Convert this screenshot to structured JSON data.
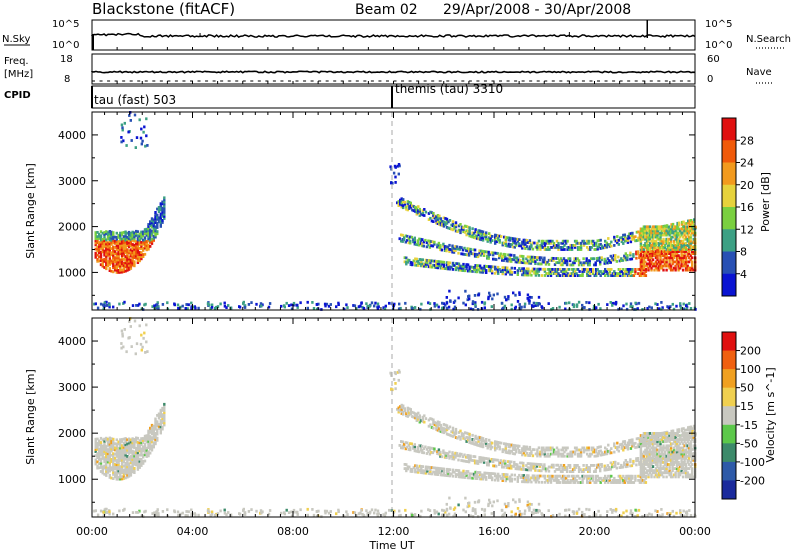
{
  "header": {
    "title": "Blackstone (fitACF)",
    "beam": "Beam 02",
    "date_range": "29/Apr/2008 - 30/Apr/2008"
  },
  "noise_panel": {
    "left_label": "N.Sky",
    "left_ticks": [
      "10^5",
      "10^0"
    ],
    "right_label": "N.Search",
    "right_ticks": [
      "10^5",
      "10^0"
    ]
  },
  "freq_panel": {
    "left_label_line1": "Freq.",
    "left_label_line2": "[MHz]",
    "left_ticks": [
      "18",
      "8"
    ],
    "right_label": "Nave",
    "right_ticks": [
      "60",
      "0"
    ]
  },
  "cpid_panel": {
    "label": "CPID",
    "modes": [
      {
        "name": "tau (fast) 503",
        "start": "00:00"
      },
      {
        "name": "themis (tau) 3310",
        "start": "12:00"
      }
    ]
  },
  "chart_data": [
    {
      "type": "heatmap",
      "name": "power",
      "ylabel": "Slant Range [km]",
      "xlabel": "Time UT",
      "xlim": [
        "00:00",
        "24:00"
      ],
      "ylim": [
        180,
        4500
      ],
      "yticks": [
        1000,
        2000,
        3000,
        4000
      ],
      "xticks": [
        "00:00",
        "04:00",
        "08:00",
        "12:00",
        "16:00",
        "20:00",
        "00:00"
      ],
      "colorbar": {
        "label": "Power [dB]",
        "ticks": [
          "4",
          "8",
          "12",
          "16",
          "20",
          "24",
          "28"
        ],
        "colors": [
          "#0a14d2",
          "#2850b4",
          "#3ca084",
          "#7ad040",
          "#e6d23c",
          "#f29a1e",
          "#f05a0a",
          "#e01010"
        ]
      }
    },
    {
      "type": "heatmap",
      "name": "velocity",
      "ylabel": "Slant Range [km]",
      "xlabel": "Time UT",
      "xlim": [
        "00:00",
        "24:00"
      ],
      "ylim": [
        180,
        4500
      ],
      "yticks": [
        1000,
        2000,
        3000,
        4000
      ],
      "xticks": [
        "00:00",
        "04:00",
        "08:00",
        "12:00",
        "16:00",
        "20:00",
        "00:00"
      ],
      "colorbar": {
        "label": "Velocity [m s^-1]",
        "ticks": [
          "200",
          "100",
          "50",
          "15",
          "-15",
          "-50",
          "-100",
          "-200"
        ],
        "colors": [
          "#1a2a9c",
          "#2e5aa8",
          "#3c8a6a",
          "#5cc84a",
          "#c8c8c0",
          "#f0d050",
          "#f0a020",
          "#f06010",
          "#e01010"
        ]
      }
    }
  ],
  "xaxis": {
    "label": "Time UT",
    "ticks": [
      "00:00",
      "04:00",
      "08:00",
      "12:00",
      "16:00",
      "20:00",
      "00:00"
    ]
  }
}
